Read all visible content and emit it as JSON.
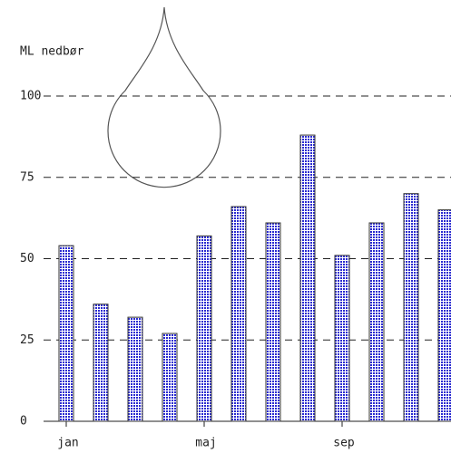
{
  "chart_data": {
    "type": "bar",
    "y_label": "ML nedbør",
    "categories": [
      "jan",
      null,
      null,
      null,
      "maj",
      null,
      null,
      null,
      "sep",
      null,
      null,
      null
    ],
    "values": [
      54,
      36,
      32,
      27,
      57,
      66,
      61,
      88,
      51,
      61,
      70,
      65
    ],
    "color": "#2a2ad0",
    "ylim": [
      0,
      100
    ],
    "yticks": [
      0,
      25,
      50,
      75,
      100
    ],
    "grid": true
  }
}
